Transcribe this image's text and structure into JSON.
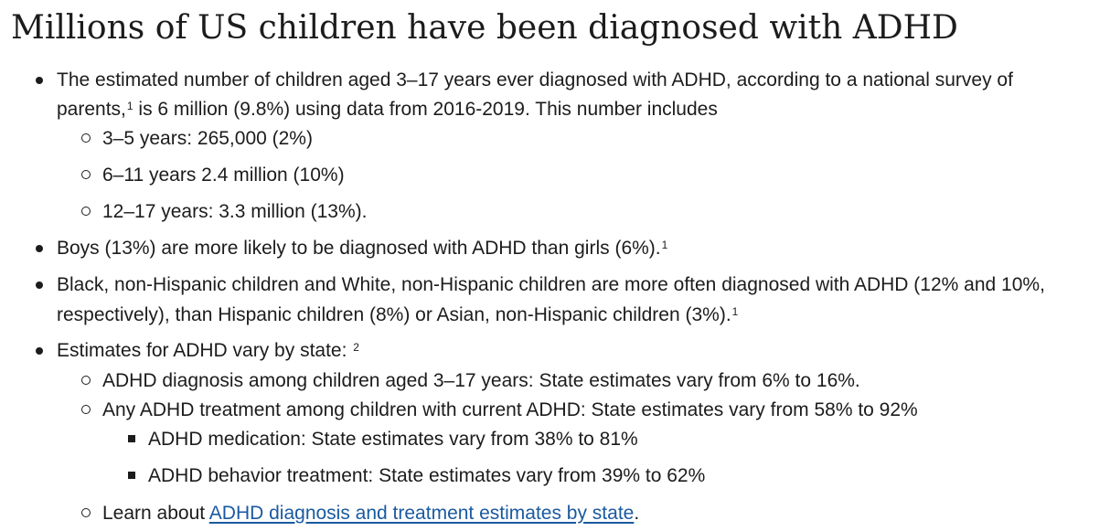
{
  "heading": "Millions of US children have been diagnosed with ADHD",
  "items": {
    "estimated": {
      "line1": "The estimated number of children aged 3–17 years ever diagnosed with ADHD, according to a national survey of",
      "line2_a": "parents,",
      "line2_sup": "1",
      "line2_b": " is 6 million (9.8%) using data from 2016-2019. This number includes",
      "sub": [
        "3–5 years: 265,000 (2%)",
        "6–11 years 2.4 million (10%)",
        "12–17 years: 3.3 million (13%)."
      ]
    },
    "boys": {
      "text": "Boys (13%) are more likely to be diagnosed with ADHD than girls (6%).",
      "sup": "1"
    },
    "race": {
      "line1": "Black, non-Hispanic children and White, non-Hispanic children are more often diagnosed with ADHD (12% and 10%,",
      "line2": "respectively), than Hispanic children (8%) or Asian, non-Hispanic children (3%).",
      "sup": "1"
    },
    "state": {
      "text": "Estimates for ADHD vary by state: ",
      "sup": "2",
      "sub": [
        "ADHD diagnosis among children aged 3–17 years: State estimates vary from 6% to 16%.",
        "Any ADHD treatment among children with current ADHD: State estimates vary from 58% to 92%"
      ],
      "subsub": [
        "ADHD medication: State estimates vary from 38% to 81%",
        "ADHD behavior treatment: State estimates vary from 39% to 62%"
      ],
      "learn_prefix": "Learn about ",
      "learn_link": "ADHD diagnosis and treatment estimates by state",
      "learn_suffix": "."
    }
  },
  "colors": {
    "text": "#1c1c1c",
    "link": "#1a5aa0"
  }
}
